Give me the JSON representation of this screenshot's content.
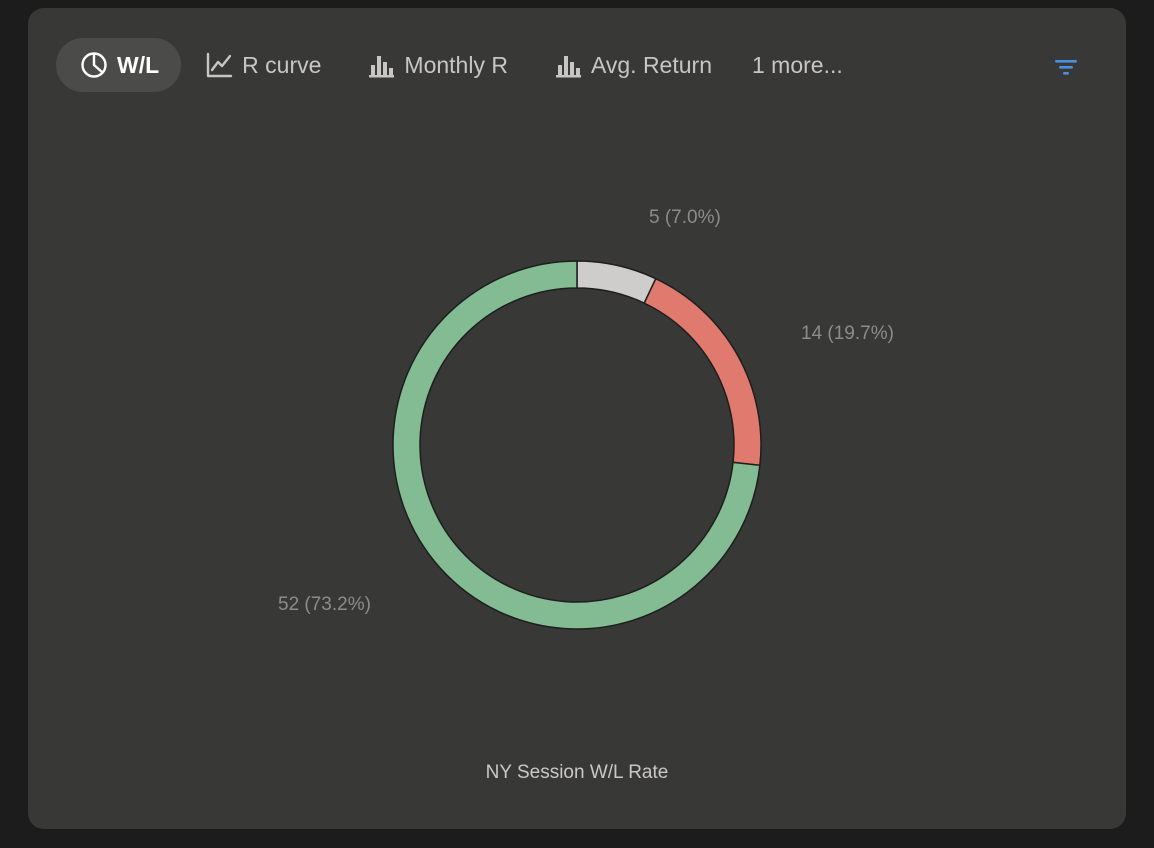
{
  "tabs": [
    {
      "label": "W/L",
      "icon": "pie-chart-icon",
      "active": true
    },
    {
      "label": "R curve",
      "icon": "line-chart-icon",
      "active": false
    },
    {
      "label": "Monthly R",
      "icon": "bar-chart-icon",
      "active": false
    },
    {
      "label": "Avg. Return",
      "icon": "bar-chart-icon",
      "active": false
    },
    {
      "label": "1 more...",
      "icon": "",
      "active": false
    }
  ],
  "filter_icon": "filter-icon",
  "colors": {
    "accent": "#4a8fe0",
    "win": "#83bb92",
    "loss": "#e07a6e",
    "breakeven": "#cfcdcc",
    "panel": "#383837",
    "background": "#1c1c1c"
  },
  "chart_data": {
    "type": "pie",
    "title": "NY Session W/L Rate",
    "donut": true,
    "slices": [
      {
        "value": 5,
        "label": "5 (7.0%)",
        "color": "#cfcdcc"
      },
      {
        "value": 14,
        "label": "14 (19.7%)",
        "color": "#e07a6e"
      },
      {
        "value": 52,
        "label": "52 (73.2%)",
        "color": "#83bb92"
      }
    ]
  }
}
